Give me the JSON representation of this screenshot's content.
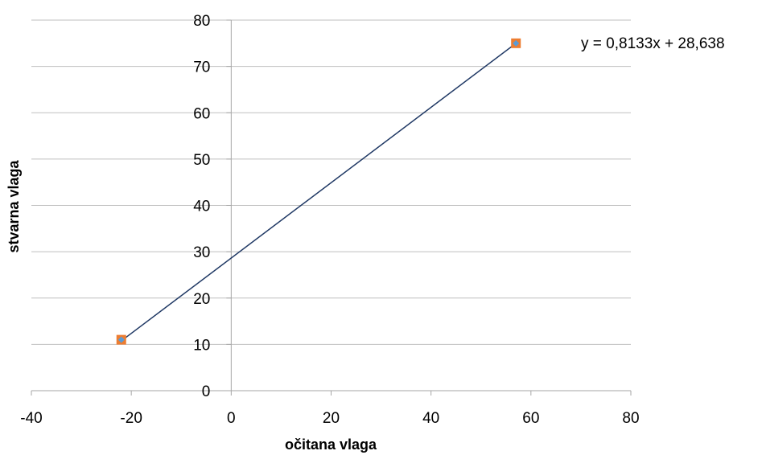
{
  "chart_data": {
    "type": "scatter",
    "title": "",
    "xlabel": "očitana vlaga",
    "ylabel": "stvarna  vlaga",
    "xlim": [
      -40,
      80
    ],
    "ylim": [
      0,
      80
    ],
    "x_ticks": [
      -40,
      -20,
      0,
      20,
      40,
      60,
      80
    ],
    "y_ticks": [
      0,
      10,
      20,
      30,
      40,
      50,
      60,
      70,
      80
    ],
    "grid": "horizontal",
    "legend": "none",
    "series": [
      {
        "points": [
          {
            "x": -22,
            "y": 11
          },
          {
            "x": 57,
            "y": 75
          }
        ],
        "marker": "square",
        "marker_color": "#ED7D31",
        "point_color": "#5B9BD5"
      }
    ],
    "trendline": {
      "type": "linear",
      "slope": 0.8133,
      "intercept": 28.638,
      "x_range": [
        -22,
        57
      ],
      "equation": "y = 0,8133x + 28,638",
      "color": "#1F3864"
    }
  }
}
